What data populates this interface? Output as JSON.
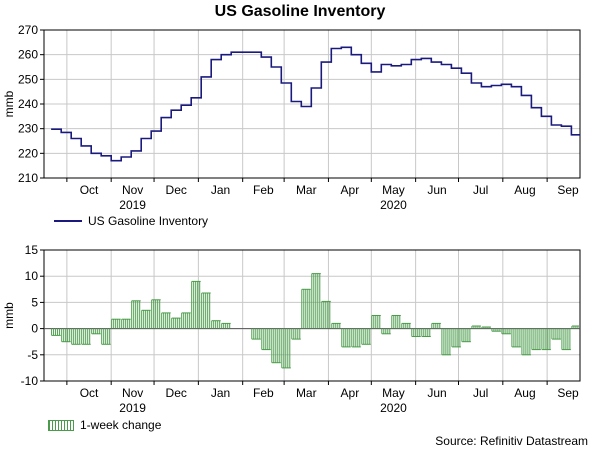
{
  "title": "US Gasoline Inventory",
  "source": "Source: Refinitiv Datastream",
  "months": [
    "Oct",
    "Nov",
    "Dec",
    "Jan",
    "Feb",
    "Mar",
    "Apr",
    "May",
    "Jun",
    "Jul",
    "Aug",
    "Sep"
  ],
  "years": [
    "2019",
    "2020"
  ],
  "colors": {
    "line": "#1a1a7e",
    "bars": "#4a9b4a",
    "grid": "#c8c8c8"
  },
  "chart_data": [
    {
      "type": "line",
      "title": "US Gasoline Inventory",
      "ylabel": "mmb",
      "ylim": [
        210,
        270
      ],
      "yticks": [
        210,
        220,
        230,
        240,
        250,
        260,
        270
      ],
      "x": [
        "2019-09-20",
        "2019-09-27",
        "2019-10-04",
        "2019-10-11",
        "2019-10-18",
        "2019-10-25",
        "2019-11-01",
        "2019-11-08",
        "2019-11-15",
        "2019-11-22",
        "2019-11-29",
        "2019-12-06",
        "2019-12-13",
        "2019-12-20",
        "2019-12-27",
        "2020-01-03",
        "2020-01-10",
        "2020-01-17",
        "2020-01-24",
        "2020-01-31",
        "2020-02-07",
        "2020-02-14",
        "2020-02-21",
        "2020-02-28",
        "2020-03-06",
        "2020-03-13",
        "2020-03-20",
        "2020-03-27",
        "2020-04-03",
        "2020-04-10",
        "2020-04-17",
        "2020-04-24",
        "2020-05-01",
        "2020-05-08",
        "2020-05-15",
        "2020-05-22",
        "2020-05-29",
        "2020-06-05",
        "2020-06-12",
        "2020-06-19",
        "2020-06-26",
        "2020-07-03",
        "2020-07-10",
        "2020-07-17",
        "2020-07-24",
        "2020-07-31",
        "2020-08-07",
        "2020-08-14",
        "2020-08-21",
        "2020-08-28",
        "2020-09-04",
        "2020-09-11",
        "2020-09-18"
      ],
      "series": [
        {
          "name": "US Gasoline Inventory",
          "values": [
            229.8,
            228.5,
            226.0,
            223.0,
            220.0,
            219.0,
            217.0,
            218.5,
            221.0,
            226.0,
            229.0,
            234.5,
            237.5,
            239.5,
            242.5,
            251.0,
            258.0,
            260.0,
            261.0,
            261.0,
            261.0,
            259.0,
            255.0,
            248.5,
            241.0,
            239.0,
            246.5,
            257.0,
            262.5,
            263.0,
            260.0,
            256.5,
            253.0,
            256.0,
            255.5,
            256.0,
            258.0,
            258.5,
            257.0,
            256.0,
            254.5,
            252.5,
            248.5,
            247.0,
            247.5,
            248.0,
            247.0,
            243.5,
            238.5,
            235.0,
            231.5,
            231.0,
            227.5
          ]
        }
      ]
    },
    {
      "type": "bar",
      "ylabel": "mmb",
      "ylim": [
        -10,
        15
      ],
      "yticks": [
        -10,
        -5,
        0,
        5,
        10,
        15
      ],
      "x": [
        "2019-09-20",
        "2019-09-27",
        "2019-10-04",
        "2019-10-11",
        "2019-10-18",
        "2019-10-25",
        "2019-11-01",
        "2019-11-08",
        "2019-11-15",
        "2019-11-22",
        "2019-11-29",
        "2019-12-06",
        "2019-12-13",
        "2019-12-20",
        "2019-12-27",
        "2020-01-03",
        "2020-01-10",
        "2020-01-17",
        "2020-01-24",
        "2020-01-31",
        "2020-02-07",
        "2020-02-14",
        "2020-02-21",
        "2020-02-28",
        "2020-03-06",
        "2020-03-13",
        "2020-03-20",
        "2020-03-27",
        "2020-04-03",
        "2020-04-10",
        "2020-04-17",
        "2020-04-24",
        "2020-05-01",
        "2020-05-08",
        "2020-05-15",
        "2020-05-22",
        "2020-05-29",
        "2020-06-05",
        "2020-06-12",
        "2020-06-19",
        "2020-06-26",
        "2020-07-03",
        "2020-07-10",
        "2020-07-17",
        "2020-07-24",
        "2020-07-31",
        "2020-08-07",
        "2020-08-14",
        "2020-08-21",
        "2020-08-28",
        "2020-09-04",
        "2020-09-11",
        "2020-09-18"
      ],
      "series": [
        {
          "name": "1-week change",
          "values": [
            -1.3,
            -2.5,
            -3.0,
            -3.0,
            -1.0,
            -3.0,
            1.8,
            1.8,
            5.3,
            3.5,
            5.5,
            3.0,
            2.0,
            3.0,
            9.0,
            6.8,
            1.5,
            1.0,
            0.0,
            0.0,
            -2.0,
            -4.0,
            -6.5,
            -7.5,
            -2.0,
            7.5,
            10.5,
            5.2,
            1.0,
            -3.5,
            -3.5,
            -3.0,
            2.5,
            -1.0,
            2.5,
            1.0,
            -1.5,
            -1.5,
            1.0,
            -5.0,
            -3.5,
            -2.5,
            0.5,
            0.3,
            -0.5,
            -1.0,
            -3.5,
            -5.0,
            -4.0,
            -4.0,
            -2.0,
            -4.0,
            0.5
          ]
        }
      ]
    }
  ]
}
